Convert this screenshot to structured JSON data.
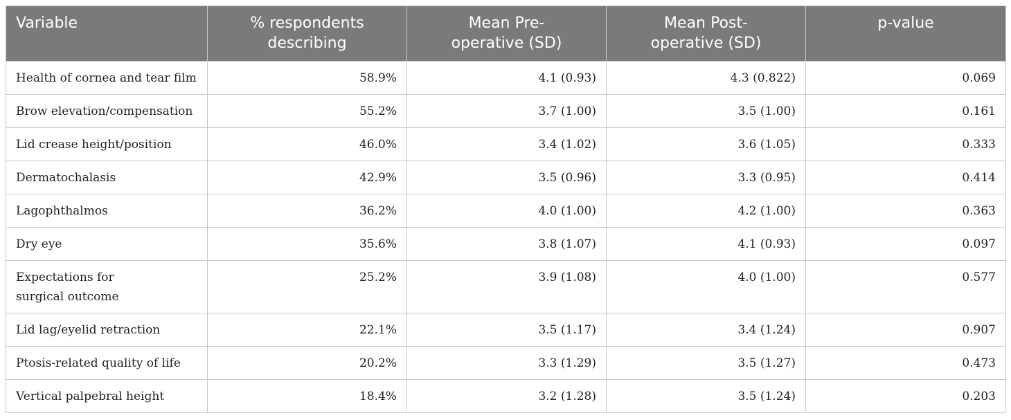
{
  "table": {
    "headers": {
      "variable": "Variable",
      "respondents_line1": "% respondents",
      "respondents_line2": "describing",
      "pre_line1": "Mean Pre-",
      "pre_line2": "operative (SD)",
      "post_line1": "Mean Post-",
      "post_line2": "operative (SD)",
      "pvalue": "p-value"
    },
    "rows": [
      {
        "variable": "Health of cornea and tear film",
        "respondents": "58.9%",
        "pre": "4.1 (0.93)",
        "post": "4.3 (0.822)",
        "p": "0.069"
      },
      {
        "variable": "Brow elevation/compensation",
        "respondents": "55.2%",
        "pre": "3.7 (1.00)",
        "post": "3.5 (1.00)",
        "p": "0.161"
      },
      {
        "variable": "Lid crease height/position",
        "respondents": "46.0%",
        "pre": "3.4 (1.02)",
        "post": "3.6 (1.05)",
        "p": "0.333"
      },
      {
        "variable": "Dermatochalasis",
        "respondents": "42.9%",
        "pre": "3.5 (0.96)",
        "post": "3.3 (0.95)",
        "p": "0.414"
      },
      {
        "variable": "Lagophthalmos",
        "respondents": "36.2%",
        "pre": "4.0 (1.00)",
        "post": "4.2 (1.00)",
        "p": "0.363"
      },
      {
        "variable": "Dry eye",
        "respondents": "35.6%",
        "pre": "3.8 (1.07)",
        "post": "4.1 (0.93)",
        "p": "0.097"
      },
      {
        "variable_line1": "Expectations for",
        "variable_line2": "surgical outcome",
        "respondents": "25.2%",
        "pre": "3.9 (1.08)",
        "post": "4.0 (1.00)",
        "p": "0.577"
      },
      {
        "variable": "Lid lag/eyelid retraction",
        "respondents": "22.1%",
        "pre": "3.5 (1.17)",
        "post": "3.4 (1.24)",
        "p": "0.907"
      },
      {
        "variable": "Ptosis-related quality of life",
        "respondents": "20.2%",
        "pre": "3.3 (1.29)",
        "post": "3.5 (1.27)",
        "p": "0.473"
      },
      {
        "variable": "Vertical palpebral height",
        "respondents": "18.4%",
        "pre": "3.2 (1.28)",
        "post": "3.5 (1.24)",
        "p": "0.203"
      }
    ]
  },
  "colors": {
    "header_background": "#7a7a7a",
    "header_text": "#ffffff",
    "border": "#c8c8c8",
    "body_text": "#222222"
  }
}
